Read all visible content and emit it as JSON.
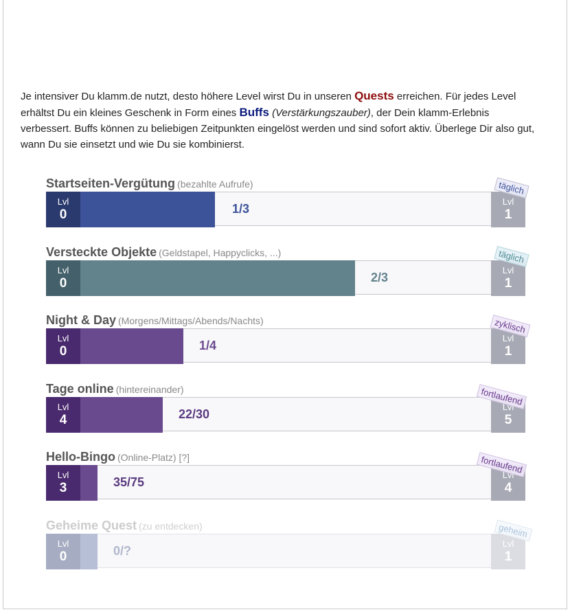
{
  "intro": {
    "t1": "Je intensiver Du klamm.de nutzt, desto höhere Level wirst Du in unseren ",
    "quests": "Quests",
    "t2": " erreichen. Für jedes Level erhältst Du ein kleines Geschenk in Form eines ",
    "buffs": "Buffs",
    "t3": " ",
    "italic": "(Verstärkungszauber)",
    "t4": ", der Dein klamm-Erlebnis verbessert. Buffs können zu beliebigen Zeitpunkten eingelöst werden und sind sofort aktiv. Überlege Dir also gut, wann Du sie einsetzt und wie Du sie kombinierst."
  },
  "quests": [
    {
      "title": "Startseiten-Vergütung",
      "subtitle": "(bezahlte Aufrufe)",
      "lvl_label": "Lvl",
      "lvl_from": "0",
      "lvl_to": "1",
      "progress": "1/3",
      "fraction": 0.333,
      "tag": "täglich",
      "colors": {
        "lvl": "#2b3a6e",
        "fill": "#3c5299",
        "text": "#3c5299",
        "tag": "#3c5299"
      }
    },
    {
      "title": "Versteckte Objekte",
      "subtitle": "(Geldstapel, Happyclicks, ...)",
      "lvl_label": "Lvl",
      "lvl_from": "0",
      "lvl_to": "1",
      "progress": "2/3",
      "fraction": 0.667,
      "tag": "täglich",
      "colors": {
        "lvl": "#44606a",
        "fill": "#62828c",
        "text": "#62828c",
        "tag": "#4d8a95"
      }
    },
    {
      "title": "Night & Day",
      "subtitle": "(Morgens/Mittags/Abends/Nachts)",
      "lvl_label": "Lvl",
      "lvl_from": "0",
      "lvl_to": "1",
      "progress": "1/4",
      "fraction": 0.25,
      "tag": "zyklisch",
      "colors": {
        "lvl": "#4a2a6e",
        "fill": "#6a4a8e",
        "text": "#6a4a8e",
        "tag": "#6a3a8e"
      }
    },
    {
      "title": "Tage online",
      "subtitle": "(hintereinander)",
      "lvl_label": "Lvl",
      "lvl_from": "4",
      "lvl_to": "5",
      "progress": "22/30",
      "fraction": 0.2,
      "tag": "fortlaufend",
      "colors": {
        "lvl": "#4a2a6e",
        "fill": "#6a4a8e",
        "text": "#5a3a80",
        "tag": "#6a3a8e"
      }
    },
    {
      "title": "Hello-Bingo",
      "subtitle": "(Online-Platz) [?]",
      "lvl_label": "Lvl",
      "lvl_from": "3",
      "lvl_to": "4",
      "progress": "35/75",
      "fraction": 0.042,
      "tag": "fortlaufend",
      "colors": {
        "lvl": "#4a2a6e",
        "fill": "#6a4a8e",
        "text": "#5a3a80",
        "tag": "#6a3a8e"
      }
    },
    {
      "title": "Geheime Quest",
      "subtitle": "(zu entdecken)",
      "lvl_label": "Lvl",
      "lvl_from": "0",
      "lvl_to": "1",
      "progress": "0/?",
      "fraction": 0.042,
      "tag": "geheim",
      "colors": {
        "lvl": "#a6adc2",
        "fill": "#b7bfd6",
        "text": "#b0b7cc",
        "tag": "#a8c2dc",
        "title": "#cccccc",
        "right": "#dcdde2"
      }
    }
  ]
}
